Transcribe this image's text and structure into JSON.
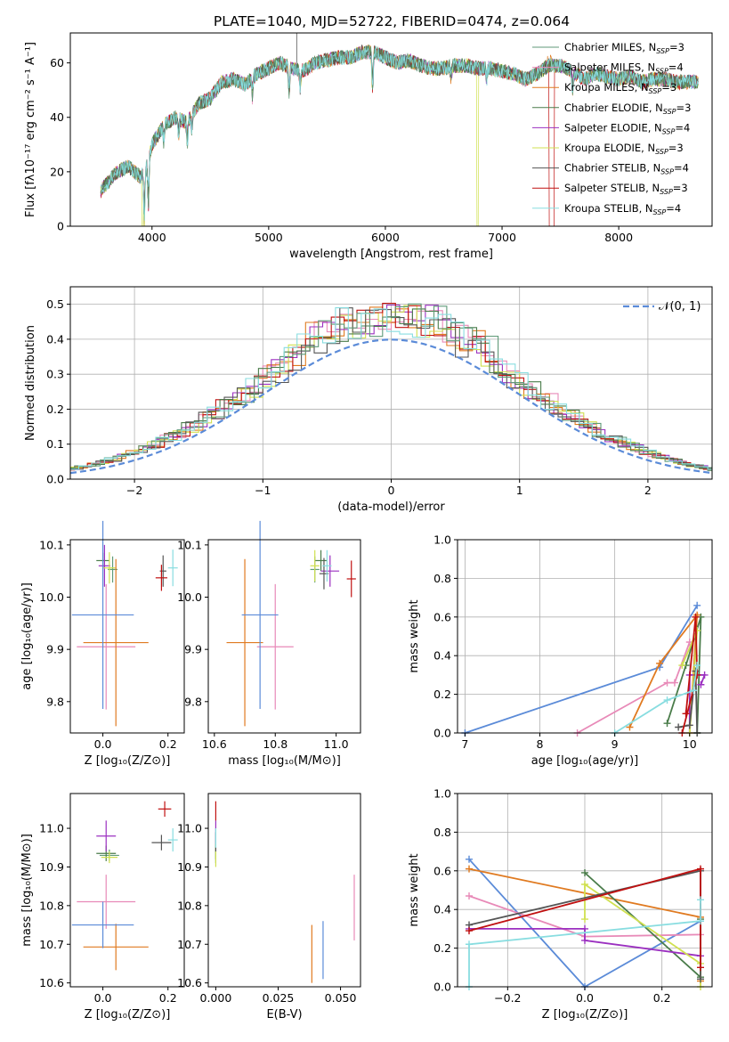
{
  "title": "PLATE=1040, MJD=52722, FIBERID=0474, z=0.064",
  "colors": [
    "#5f9a78",
    "#e88ab8",
    "#e07a20",
    "#4a7c4a",
    "#9b30c0",
    "#d0e050",
    "#555555",
    "#c01010",
    "#88dde0"
  ],
  "legend": [
    {
      "main": "Chabrier MILES, N",
      "sub": "SSP",
      "tail": "=3"
    },
    {
      "main": "Salpeter MILES, N",
      "sub": "SSP",
      "tail": "=4"
    },
    {
      "main": "Kroupa MILES, N",
      "sub": "SSP",
      "tail": "=3"
    },
    {
      "main": "Chabrier ELODIE, N",
      "sub": "SSP",
      "tail": "=3"
    },
    {
      "main": "Salpeter ELODIE, N",
      "sub": "SSP",
      "tail": "=4"
    },
    {
      "main": "Kroupa ELODIE, N",
      "sub": "SSP",
      "tail": "=3"
    },
    {
      "main": "Chabrier STELIB, N",
      "sub": "SSP",
      "tail": "=4"
    },
    {
      "main": "Salpeter STELIB, N",
      "sub": "SSP",
      "tail": "=3"
    },
    {
      "main": "Kroupa STELIB, N",
      "sub": "SSP",
      "tail": "=4"
    }
  ],
  "normal_label": "𝒩(0, 1)",
  "chart_data": [
    {
      "type": "line",
      "panel": "spectrum",
      "xlabel": "wavelength [Angstrom, rest frame]",
      "ylabel": "Flux [fλ10⁻¹⁷ erg cm⁻² s⁻¹ A⁻¹]",
      "xlim": [
        3300,
        8800
      ],
      "ylim": [
        0,
        71
      ],
      "xticks": [
        4000,
        5000,
        6000,
        7000,
        8000
      ],
      "yticks": [
        0,
        20,
        40,
        60
      ],
      "spectrum_anchors": [
        [
          3560,
          13
        ],
        [
          3700,
          20
        ],
        [
          3800,
          22
        ],
        [
          3900,
          18
        ],
        [
          3950,
          21
        ],
        [
          4000,
          30
        ],
        [
          4100,
          37
        ],
        [
          4200,
          40
        ],
        [
          4300,
          38
        ],
        [
          4400,
          45
        ],
        [
          4500,
          47
        ],
        [
          4600,
          53
        ],
        [
          4700,
          54
        ],
        [
          4800,
          52
        ],
        [
          4900,
          56
        ],
        [
          5000,
          58
        ],
        [
          5100,
          60
        ],
        [
          5200,
          58
        ],
        [
          5300,
          57
        ],
        [
          5400,
          60
        ],
        [
          5500,
          61
        ],
        [
          5600,
          62
        ],
        [
          5700,
          62
        ],
        [
          5800,
          64
        ],
        [
          5900,
          64
        ],
        [
          6000,
          62
        ],
        [
          6100,
          60
        ],
        [
          6200,
          61
        ],
        [
          6300,
          59
        ],
        [
          6400,
          58
        ],
        [
          6500,
          58
        ],
        [
          6600,
          59
        ],
        [
          6700,
          59
        ],
        [
          6800,
          58
        ],
        [
          6900,
          58
        ],
        [
          7000,
          57
        ],
        [
          7100,
          56
        ],
        [
          7200,
          54
        ],
        [
          7300,
          56
        ],
        [
          7400,
          59
        ],
        [
          7500,
          59
        ],
        [
          7600,
          57
        ],
        [
          7700,
          54
        ],
        [
          7800,
          56
        ],
        [
          7900,
          55
        ],
        [
          8000,
          54
        ],
        [
          8100,
          55
        ],
        [
          8200,
          53
        ],
        [
          8300,
          54
        ],
        [
          8400,
          54
        ],
        [
          8500,
          53
        ],
        [
          8600,
          53
        ],
        [
          8680,
          53
        ]
      ],
      "absorption_lines": [
        [
          3934,
          18
        ],
        [
          3969,
          16
        ],
        [
          4102,
          6
        ],
        [
          4227,
          6
        ],
        [
          4304,
          7
        ],
        [
          4340,
          5
        ],
        [
          4861,
          6
        ],
        [
          5175,
          9
        ],
        [
          5270,
          6
        ],
        [
          5890,
          14
        ],
        [
          6563,
          4
        ],
        [
          6867,
          4
        ],
        [
          7605,
          8
        ]
      ],
      "dropouts": [
        {
          "x": 3920,
          "series": 5
        },
        {
          "x": 6790,
          "series": 5
        },
        {
          "x": 7410,
          "series": 7
        }
      ]
    },
    {
      "type": "line",
      "panel": "residual_histogram",
      "xlabel": "(data-model)/error",
      "ylabel": "Normed distribution",
      "xlim": [
        -2.5,
        2.5
      ],
      "ylim": [
        0,
        0.55
      ],
      "xticks": [
        -2,
        -1,
        0,
        1,
        2
      ],
      "yticks": [
        0.0,
        0.1,
        0.2,
        0.3,
        0.4,
        0.5
      ],
      "bin_width": 0.1,
      "normal_curve": {
        "mu": 0,
        "sigma": 1
      }
    },
    {
      "type": "scatter",
      "panel": "age_vs_Z",
      "xlabel": "Z [log₁₀(Z/Z⊙)]",
      "ylabel": "age  [log₁₀(age/yr)]",
      "xlim": [
        -0.1,
        0.25
      ],
      "ylim": [
        9.74,
        10.11
      ],
      "xticks": [
        0.0,
        0.2
      ],
      "yticks": [
        9.8,
        9.9,
        10.0,
        10.1
      ],
      "points": [
        {
          "series": 0,
          "x": 0.03,
          "y": 10.053,
          "xerr": 0.015,
          "yerr": 0.025
        },
        {
          "series": 1,
          "x": 0.01,
          "y": 9.905,
          "xerr": 0.09,
          "yerr": 0.12
        },
        {
          "series": 2,
          "x": 0.04,
          "y": 9.913,
          "xerr": 0.1,
          "yerr": 0.16
        },
        {
          "series": 3,
          "x": 0.0,
          "y": 10.07,
          "xerr": 0.02,
          "yerr": 0.015
        },
        {
          "series": 4,
          "x": 0.005,
          "y": 10.06,
          "xerr": 0.018,
          "yerr": 0.04
        },
        {
          "series": 5,
          "x": 0.02,
          "y": 10.056,
          "xerr": 0.018,
          "yerr": 0.03
        },
        {
          "series": 6,
          "x": 0.185,
          "y": 10.05,
          "xerr": 0.01,
          "yerr": 0.03
        },
        {
          "series": 7,
          "x": 0.18,
          "y": 10.037,
          "xerr": 0.018,
          "yerr": 0.025
        },
        {
          "series": 8,
          "x": 0.215,
          "y": 10.056,
          "xerr": 0.015,
          "yerr": 0.035
        },
        {
          "series": -1,
          "x": 0.0,
          "y": 9.966,
          "xerr": 0.095,
          "yerr": 0.18
        }
      ]
    },
    {
      "type": "scatter",
      "panel": "age_vs_mass",
      "xlabel": "mass [log₁₀(M/M⊙)]",
      "ylabel": "",
      "xlim": [
        10.58,
        11.08
      ],
      "ylim": [
        9.74,
        10.11
      ],
      "xticks": [
        10.6,
        10.8,
        11.0
      ],
      "yticks": [
        9.8,
        9.9,
        10.0,
        10.1
      ],
      "points": [
        {
          "series": 0,
          "x": 10.93,
          "y": 10.053,
          "xerr": 0.015,
          "yerr": 0.025
        },
        {
          "series": 1,
          "x": 10.8,
          "y": 9.905,
          "xerr": 0.06,
          "yerr": 0.12
        },
        {
          "series": 2,
          "x": 10.7,
          "y": 9.913,
          "xerr": 0.06,
          "yerr": 0.16
        },
        {
          "series": 3,
          "x": 10.95,
          "y": 10.07,
          "xerr": 0.02,
          "yerr": 0.02
        },
        {
          "series": 4,
          "x": 10.98,
          "y": 10.05,
          "xerr": 0.03,
          "yerr": 0.03
        },
        {
          "series": 5,
          "x": 10.93,
          "y": 10.06,
          "xerr": 0.015,
          "yerr": 0.03
        },
        {
          "series": 6,
          "x": 10.96,
          "y": 10.045,
          "xerr": 0.015,
          "yerr": 0.03
        },
        {
          "series": 7,
          "x": 11.05,
          "y": 10.035,
          "xerr": 0.015,
          "yerr": 0.035
        },
        {
          "series": 8,
          "x": 10.97,
          "y": 10.06,
          "xerr": 0.015,
          "yerr": 0.03
        },
        {
          "series": -1,
          "x": 10.75,
          "y": 9.966,
          "xerr": 0.06,
          "yerr": 0.18
        }
      ]
    },
    {
      "type": "line",
      "panel": "mass_weight_vs_age",
      "xlabel": "age  [log₁₀(age/yr)]",
      "ylabel": "mass weight",
      "xlim": [
        6.9,
        10.3
      ],
      "ylim": [
        0,
        1
      ],
      "xticks": [
        7,
        8,
        9,
        10
      ],
      "yticks": [
        0.0,
        0.2,
        0.4,
        0.6,
        0.8,
        1.0
      ],
      "series": [
        {
          "series": -1,
          "x": [
            7.0,
            9.6,
            10.1
          ],
          "y": [
            0.0,
            0.34,
            0.66
          ]
        },
        {
          "series": 1,
          "x": [
            8.5,
            9.7,
            9.8,
            10.0
          ],
          "y": [
            0.0,
            0.26,
            0.26,
            0.47
          ]
        },
        {
          "series": 2,
          "x": [
            9.2,
            9.6,
            10.1,
            10.0
          ],
          "y": [
            0.03,
            0.36,
            0.61,
            0.0
          ]
        },
        {
          "series": 3,
          "x": [
            9.7,
            9.95,
            10.15,
            10.1
          ],
          "y": [
            0.05,
            0.35,
            0.6,
            0.0
          ]
        },
        {
          "series": 4,
          "x": [
            10.0,
            10.0,
            10.2,
            10.15
          ],
          "y": [
            0.0,
            0.3,
            0.3,
            0.25
          ]
        },
        {
          "series": 5,
          "x": [
            9.9,
            10.1,
            10.0
          ],
          "y": [
            0.35,
            0.53,
            0.0
          ]
        },
        {
          "series": 6,
          "x": [
            9.85,
            10.0,
            10.08,
            10.1
          ],
          "y": [
            0.03,
            0.04,
            0.32,
            0.0
          ]
        },
        {
          "series": 7,
          "x": [
            9.9,
            10.1,
            10.08,
            9.95
          ],
          "y": [
            0.0,
            0.3,
            0.6,
            0.1
          ]
        },
        {
          "series": 8,
          "x": [
            9.0,
            9.7,
            10.05,
            10.1
          ],
          "y": [
            0.0,
            0.17,
            0.22,
            0.35
          ]
        }
      ]
    },
    {
      "type": "scatter",
      "panel": "mass_vs_Z",
      "xlabel": "Z [log₁₀(Z/Z⊙)]",
      "ylabel": "mass [log₁₀(M/M⊙)]",
      "xlim": [
        -0.1,
        0.25
      ],
      "ylim": [
        10.59,
        11.09
      ],
      "xticks": [
        0.0,
        0.2
      ],
      "yticks": [
        10.6,
        10.7,
        10.8,
        10.9,
        11.0
      ],
      "points": [
        {
          "series": 0,
          "x": 0.02,
          "y": 10.93,
          "xerr": 0.03,
          "yerr": 0.015
        },
        {
          "series": 1,
          "x": 0.01,
          "y": 10.81,
          "xerr": 0.09,
          "yerr": 0.07
        },
        {
          "series": 2,
          "x": 0.04,
          "y": 10.693,
          "xerr": 0.1,
          "yerr": 0.06
        },
        {
          "series": 3,
          "x": 0.01,
          "y": 10.935,
          "xerr": 0.03,
          "yerr": 0.02
        },
        {
          "series": 4,
          "x": 0.01,
          "y": 10.98,
          "xerr": 0.03,
          "yerr": 0.04
        },
        {
          "series": 5,
          "x": 0.02,
          "y": 10.925,
          "xerr": 0.025,
          "yerr": 0.015
        },
        {
          "series": 6,
          "x": 0.18,
          "y": 10.963,
          "xerr": 0.03,
          "yerr": 0.02
        },
        {
          "series": 7,
          "x": 0.19,
          "y": 11.05,
          "xerr": 0.02,
          "yerr": 0.02
        },
        {
          "series": 8,
          "x": 0.215,
          "y": 10.97,
          "xerr": 0.015,
          "yerr": 0.03
        },
        {
          "series": -1,
          "x": 0.0,
          "y": 10.75,
          "xerr": 0.095,
          "yerr": 0.06
        }
      ]
    },
    {
      "type": "scatter",
      "panel": "mass_vs_EBV",
      "xlabel": "E(B-V)",
      "ylabel": "",
      "xlim": [
        -0.003,
        0.058
      ],
      "ylim": [
        10.59,
        11.09
      ],
      "xticks": [
        0.0,
        0.025,
        0.05
      ],
      "yticks": [
        10.6,
        10.7,
        10.8,
        10.9,
        11.0
      ],
      "vbars": [
        {
          "series": 0,
          "x": 0.0,
          "y0": 10.91,
          "y1": 10.96
        },
        {
          "series": 3,
          "x": 0.0,
          "y0": 10.92,
          "y1": 10.95
        },
        {
          "series": 4,
          "x": 0.0,
          "y0": 10.96,
          "y1": 11.02
        },
        {
          "series": 5,
          "x": 0.0,
          "y0": 10.9,
          "y1": 10.96
        },
        {
          "series": 6,
          "x": 0.0,
          "y0": 10.94,
          "y1": 10.99
        },
        {
          "series": 7,
          "x": 0.0,
          "y0": 11.02,
          "y1": 11.07
        },
        {
          "series": 8,
          "x": 0.0,
          "y0": 10.95,
          "y1": 11.0
        },
        {
          "series": 2,
          "x": 0.0385,
          "y0": 10.6,
          "y1": 10.75
        },
        {
          "series": -1,
          "x": 0.043,
          "y0": 10.61,
          "y1": 10.76
        },
        {
          "series": 1,
          "x": 0.0555,
          "y0": 10.71,
          "y1": 10.88
        }
      ]
    },
    {
      "type": "line",
      "panel": "mass_weight_vs_Z",
      "xlabel": "Z [log₁₀(Z/Z⊙)]",
      "ylabel": "mass weight",
      "xlim": [
        -0.33,
        0.33
      ],
      "ylim": [
        0,
        1
      ],
      "xticks": [
        -0.2,
        0.0,
        0.2
      ],
      "yticks": [
        0.0,
        0.2,
        0.4,
        0.6,
        0.8,
        1.0
      ],
      "series": [
        {
          "series": -1,
          "x": [
            -0.3,
            0.0,
            0.3
          ],
          "y": [
            0.66,
            0.0,
            0.34
          ]
        },
        {
          "series": 1,
          "x": [
            -0.3,
            0.0,
            0.3
          ],
          "y": [
            0.47,
            0.26,
            0.27
          ]
        },
        {
          "series": 2,
          "x": [
            -0.3,
            0.3,
            0.3
          ],
          "y": [
            0.61,
            0.36,
            0.03
          ]
        },
        {
          "series": 3,
          "x": [
            0.0,
            0.3,
            0.3
          ],
          "y": [
            0.59,
            0.05,
            0.35
          ]
        },
        {
          "series": 4,
          "x": [
            -0.3,
            0.0,
            0.0,
            0.3
          ],
          "y": [
            0.3,
            0.3,
            0.24,
            0.16
          ]
        },
        {
          "series": 5,
          "x": [
            0.0,
            0.0,
            0.3,
            0.3
          ],
          "y": [
            0.35,
            0.53,
            0.12,
            0.0
          ]
        },
        {
          "series": 6,
          "x": [
            -0.3,
            0.3,
            0.3
          ],
          "y": [
            0.32,
            0.6,
            0.04
          ]
        },
        {
          "series": 7,
          "x": [
            -0.3,
            0.3,
            0.3
          ],
          "y": [
            0.29,
            0.61,
            0.1
          ]
        },
        {
          "series": 8,
          "x": [
            -0.3,
            -0.3,
            0.3,
            0.3
          ],
          "y": [
            0.0,
            0.22,
            0.34,
            0.45
          ]
        }
      ]
    }
  ]
}
